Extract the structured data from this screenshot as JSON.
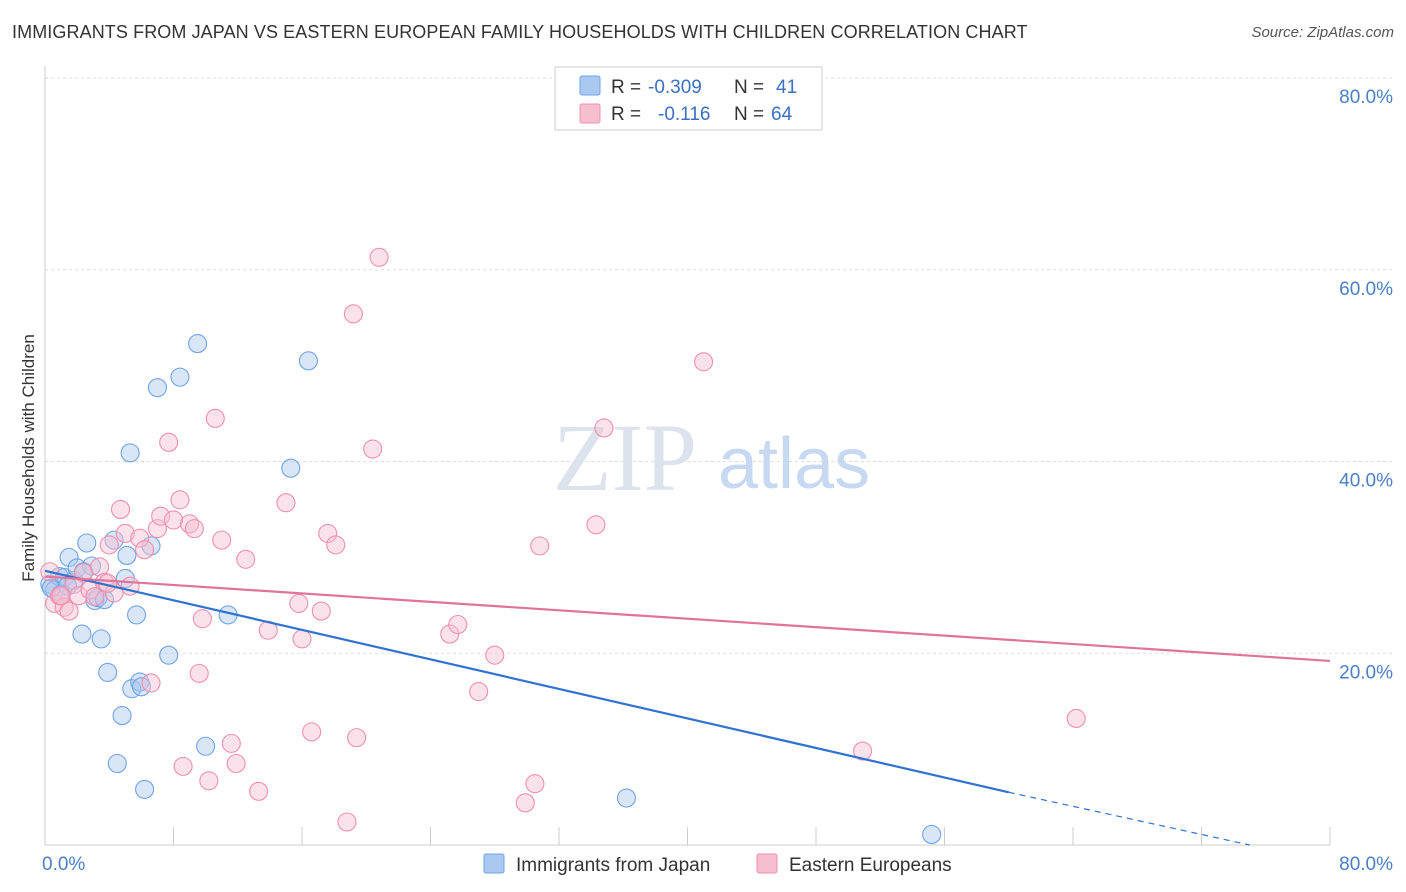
{
  "title": "IMMIGRANTS FROM JAPAN VS EASTERN EUROPEAN FAMILY HOUSEHOLDS WITH CHILDREN CORRELATION CHART",
  "source": "Source: ZipAtlas.com",
  "watermark": {
    "zip": "ZIP",
    "atlas": "atlas"
  },
  "chart_data": {
    "type": "scatter",
    "xlabel": "",
    "ylabel": "Family Households with Children",
    "xlim": [
      0,
      80
    ],
    "ylim": [
      0,
      80
    ],
    "x_tick_labels": [
      "0.0%",
      "80.0%"
    ],
    "y_tick_labels": [
      "20.0%",
      "40.0%",
      "60.0%",
      "80.0%"
    ],
    "legend_top": [
      {
        "r_label": "R =",
        "r_value": "-0.309",
        "n_label": "N =",
        "n_value": "41"
      },
      {
        "r_label": "R =",
        "r_value": "-0.116",
        "n_label": "N =",
        "n_value": "64"
      }
    ],
    "series": [
      {
        "name": "Immigrants from Japan",
        "color": "#6fa3e6",
        "fill": "#a9c8f0",
        "line_color": "#2f72d0",
        "trend": {
          "x0": 0,
          "y0": 28.6,
          "x1": 60,
          "y1": 5.5,
          "dash_to_x": 75,
          "dash_to_y": 0.0
        },
        "points": [
          [
            0.3,
            27.2
          ],
          [
            0.6,
            26.6
          ],
          [
            0.9,
            28.0
          ],
          [
            1.0,
            26.2
          ],
          [
            1.2,
            27.9
          ],
          [
            1.5,
            30.0
          ],
          [
            1.8,
            27.6
          ],
          [
            2.0,
            28.9
          ],
          [
            2.3,
            22.0
          ],
          [
            2.6,
            31.5
          ],
          [
            2.9,
            29.1
          ],
          [
            3.1,
            25.5
          ],
          [
            3.3,
            25.8
          ],
          [
            3.5,
            21.5
          ],
          [
            3.9,
            18.0
          ],
          [
            4.3,
            31.8
          ],
          [
            4.8,
            13.5
          ],
          [
            4.5,
            8.5
          ],
          [
            5.0,
            27.8
          ],
          [
            5.1,
            30.2
          ],
          [
            5.3,
            40.9
          ],
          [
            5.4,
            16.3
          ],
          [
            5.7,
            24.0
          ],
          [
            5.9,
            17.0
          ],
          [
            6.2,
            5.8
          ],
          [
            6.6,
            31.2
          ],
          [
            7.0,
            47.7
          ],
          [
            7.7,
            19.8
          ],
          [
            8.4,
            48.8
          ],
          [
            9.5,
            52.3
          ],
          [
            10.0,
            10.3
          ],
          [
            11.4,
            24.0
          ],
          [
            15.3,
            39.3
          ],
          [
            16.4,
            50.5
          ],
          [
            36.2,
            4.9
          ],
          [
            55.2,
            1.1
          ],
          [
            0.4,
            26.8
          ],
          [
            1.4,
            27.0
          ],
          [
            2.4,
            28.5
          ],
          [
            3.7,
            25.6
          ],
          [
            6.0,
            16.5
          ]
        ]
      },
      {
        "name": "Eastern Europeans",
        "color": "#ef8fae",
        "fill": "#f6bfd0",
        "line_color": "#e0739a",
        "trend": {
          "x0": 0,
          "y0": 28.0,
          "x1": 80,
          "y1": 19.2
        },
        "points": [
          [
            0.3,
            28.5
          ],
          [
            0.6,
            25.2
          ],
          [
            0.9,
            26.0
          ],
          [
            1.2,
            24.8
          ],
          [
            1.5,
            24.4
          ],
          [
            1.8,
            27.2
          ],
          [
            2.1,
            26.0
          ],
          [
            2.4,
            28.4
          ],
          [
            2.8,
            26.6
          ],
          [
            3.1,
            25.9
          ],
          [
            3.4,
            29.0
          ],
          [
            3.7,
            27.4
          ],
          [
            4.0,
            31.3
          ],
          [
            4.3,
            26.3
          ],
          [
            4.7,
            35.0
          ],
          [
            5.0,
            32.5
          ],
          [
            5.3,
            27.0
          ],
          [
            5.9,
            32.0
          ],
          [
            6.2,
            30.8
          ],
          [
            6.6,
            16.9
          ],
          [
            7.0,
            33.0
          ],
          [
            7.2,
            34.3
          ],
          [
            7.7,
            42.0
          ],
          [
            8.0,
            33.9
          ],
          [
            8.4,
            36.0
          ],
          [
            8.6,
            8.2
          ],
          [
            9.0,
            33.5
          ],
          [
            9.3,
            33.0
          ],
          [
            9.6,
            17.9
          ],
          [
            9.8,
            23.6
          ],
          [
            10.2,
            6.7
          ],
          [
            10.6,
            44.5
          ],
          [
            11.0,
            31.8
          ],
          [
            11.6,
            10.6
          ],
          [
            11.9,
            8.5
          ],
          [
            12.5,
            29.8
          ],
          [
            13.3,
            5.6
          ],
          [
            13.9,
            22.4
          ],
          [
            15.0,
            35.7
          ],
          [
            15.8,
            25.2
          ],
          [
            16.0,
            21.5
          ],
          [
            16.6,
            11.8
          ],
          [
            17.2,
            24.4
          ],
          [
            17.6,
            32.5
          ],
          [
            18.1,
            31.3
          ],
          [
            18.8,
            2.4
          ],
          [
            19.2,
            55.4
          ],
          [
            19.4,
            11.2
          ],
          [
            20.4,
            41.3
          ],
          [
            20.8,
            61.3
          ],
          [
            25.2,
            22.0
          ],
          [
            25.7,
            23.0
          ],
          [
            27.0,
            16.0
          ],
          [
            28.0,
            19.8
          ],
          [
            29.9,
            4.4
          ],
          [
            30.5,
            6.4
          ],
          [
            30.8,
            31.2
          ],
          [
            34.3,
            33.4
          ],
          [
            34.8,
            43.5
          ],
          [
            41.0,
            50.4
          ],
          [
            50.9,
            9.8
          ],
          [
            64.2,
            13.2
          ],
          [
            1.0,
            26.0
          ],
          [
            3.9,
            27.3
          ]
        ]
      }
    ]
  },
  "bottom_legend": [
    {
      "label": "Immigrants from Japan"
    },
    {
      "label": "Eastern Europeans"
    }
  ]
}
